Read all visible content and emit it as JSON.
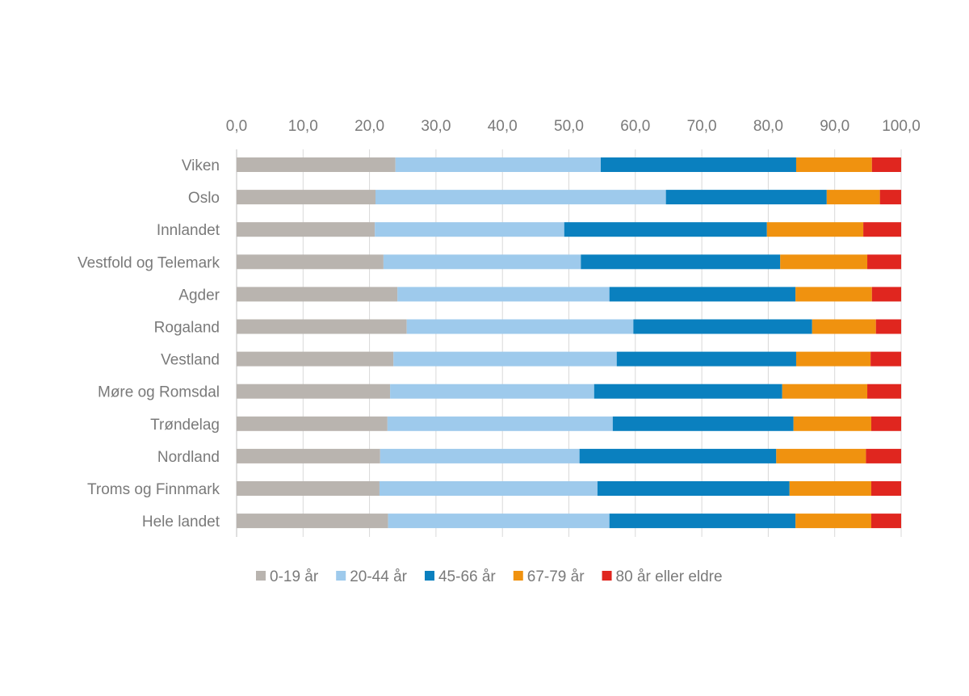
{
  "chart_data": {
    "type": "bar",
    "orientation": "horizontal",
    "stacked": true,
    "title": "",
    "xlabel": "",
    "ylabel": "",
    "xlim": [
      0,
      100
    ],
    "x_ticks": [
      "0,0",
      "10,0",
      "20,0",
      "30,0",
      "40,0",
      "50,0",
      "60,0",
      "70,0",
      "80,0",
      "90,0",
      "100,0"
    ],
    "x_axis_position": "top",
    "grid": true,
    "legend_position": "bottom",
    "categories": [
      "Viken",
      "Oslo",
      "Innlandet",
      "Vestfold og Telemark",
      "Agder",
      "Rogaland",
      "Vestland",
      "Møre og Romsdal",
      "Trøndelag",
      "Nordland",
      "Troms og Finnmark",
      "Hele landet"
    ],
    "series": [
      {
        "name": "0-19 år",
        "color": "#b9b4af",
        "values": [
          23.9,
          20.9,
          20.8,
          22.1,
          24.2,
          25.6,
          23.6,
          23.1,
          22.7,
          21.6,
          21.5,
          22.8
        ]
      },
      {
        "name": "20-44 år",
        "color": "#9ecaec",
        "values": [
          30.9,
          43.7,
          28.5,
          29.7,
          31.9,
          34.1,
          33.6,
          30.7,
          33.9,
          30.0,
          32.8,
          33.3
        ]
      },
      {
        "name": "45-66 år",
        "color": "#0a80bf",
        "values": [
          29.4,
          24.2,
          30.5,
          30.0,
          28.0,
          26.9,
          27.0,
          28.3,
          27.2,
          29.6,
          28.9,
          28.0
        ]
      },
      {
        "name": "67-79 år",
        "color": "#f0920f",
        "values": [
          11.4,
          8.0,
          14.5,
          13.1,
          11.5,
          9.6,
          11.2,
          12.8,
          11.7,
          13.5,
          12.3,
          11.4
        ]
      },
      {
        "name": "80 år eller eldre",
        "color": "#e0261f",
        "values": [
          4.4,
          3.2,
          5.7,
          5.1,
          4.4,
          3.8,
          4.6,
          5.1,
          4.5,
          5.3,
          4.5,
          4.5
        ]
      }
    ]
  }
}
